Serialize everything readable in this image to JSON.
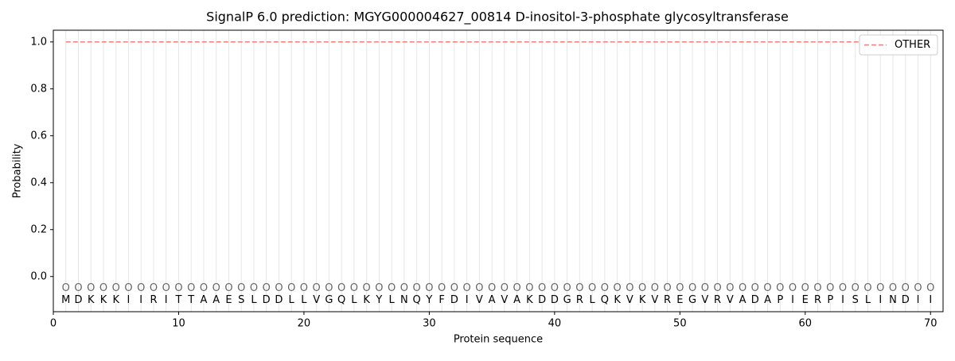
{
  "chart_data": {
    "type": "line",
    "title": "SignalP 6.0 prediction: MGYG000004627_00814 D-inositol-3-phosphate glycosyltransferase",
    "xlabel": "Protein sequence",
    "ylabel": "Probability",
    "x": [
      1,
      2,
      3,
      4,
      5,
      6,
      7,
      8,
      9,
      10,
      11,
      12,
      13,
      14,
      15,
      16,
      17,
      18,
      19,
      20,
      21,
      22,
      23,
      24,
      25,
      26,
      27,
      28,
      29,
      30,
      31,
      32,
      33,
      34,
      35,
      36,
      37,
      38,
      39,
      40,
      41,
      42,
      43,
      44,
      45,
      46,
      47,
      48,
      49,
      50,
      51,
      52,
      53,
      54,
      55,
      56,
      57,
      58,
      59,
      60,
      61,
      62,
      63,
      64,
      65,
      66,
      67,
      68,
      69,
      70
    ],
    "residues": [
      "M",
      "D",
      "K",
      "K",
      "K",
      "I",
      "I",
      "R",
      "I",
      "T",
      "T",
      "A",
      "A",
      "E",
      "S",
      "L",
      "D",
      "D",
      "L",
      "L",
      "V",
      "G",
      "Q",
      "L",
      "K",
      "Y",
      "L",
      "N",
      "Q",
      "Y",
      "F",
      "D",
      "I",
      "V",
      "A",
      "V",
      "A",
      "K",
      "D",
      "D",
      "G",
      "R",
      "L",
      "Q",
      "K",
      "V",
      "K",
      "V",
      "R",
      "E",
      "G",
      "V",
      "R",
      "V",
      "A",
      "D",
      "A",
      "P",
      "I",
      "E",
      "R",
      "P",
      "I",
      "S",
      "L",
      "I",
      "N",
      "D",
      "I",
      "I"
    ],
    "region_labels": [
      "O",
      "O",
      "O",
      "O",
      "O",
      "O",
      "O",
      "O",
      "O",
      "O",
      "O",
      "O",
      "O",
      "O",
      "O",
      "O",
      "O",
      "O",
      "O",
      "O",
      "O",
      "O",
      "O",
      "O",
      "O",
      "O",
      "O",
      "O",
      "O",
      "O",
      "O",
      "O",
      "O",
      "O",
      "O",
      "O",
      "O",
      "O",
      "O",
      "O",
      "O",
      "O",
      "O",
      "O",
      "O",
      "O",
      "O",
      "O",
      "O",
      "O",
      "O",
      "O",
      "O",
      "O",
      "O",
      "O",
      "O",
      "O",
      "O",
      "O",
      "O",
      "O",
      "O",
      "O",
      "O",
      "O",
      "O",
      "O",
      "O",
      "O"
    ],
    "series": [
      {
        "name": "OTHER",
        "color": "#f08080",
        "dashed": true,
        "values": [
          1,
          1,
          1,
          1,
          1,
          1,
          1,
          1,
          1,
          1,
          1,
          1,
          1,
          1,
          1,
          1,
          1,
          1,
          1,
          1,
          1,
          1,
          1,
          1,
          1,
          1,
          1,
          1,
          1,
          1,
          1,
          1,
          1,
          1,
          1,
          1,
          1,
          1,
          1,
          1,
          1,
          1,
          1,
          1,
          1,
          1,
          1,
          1,
          1,
          1,
          1,
          1,
          1,
          1,
          1,
          1,
          1,
          1,
          1,
          1,
          1,
          1,
          1,
          1,
          1,
          1,
          1,
          1,
          1,
          1
        ]
      }
    ],
    "xlim": [
      0,
      71
    ],
    "ylim": [
      -0.15,
      1.05
    ],
    "xticks": [
      0,
      10,
      20,
      30,
      40,
      50,
      60,
      70
    ],
    "yticks": [
      {
        "value": 0,
        "label": "0.0"
      },
      {
        "value": 0.2,
        "label": "0.2"
      },
      {
        "value": 0.4,
        "label": "0.4"
      },
      {
        "value": 0.6,
        "label": "0.6"
      },
      {
        "value": 0.8,
        "label": "0.8"
      },
      {
        "value": 1,
        "label": "1.0"
      }
    ],
    "legend": "upper right"
  }
}
